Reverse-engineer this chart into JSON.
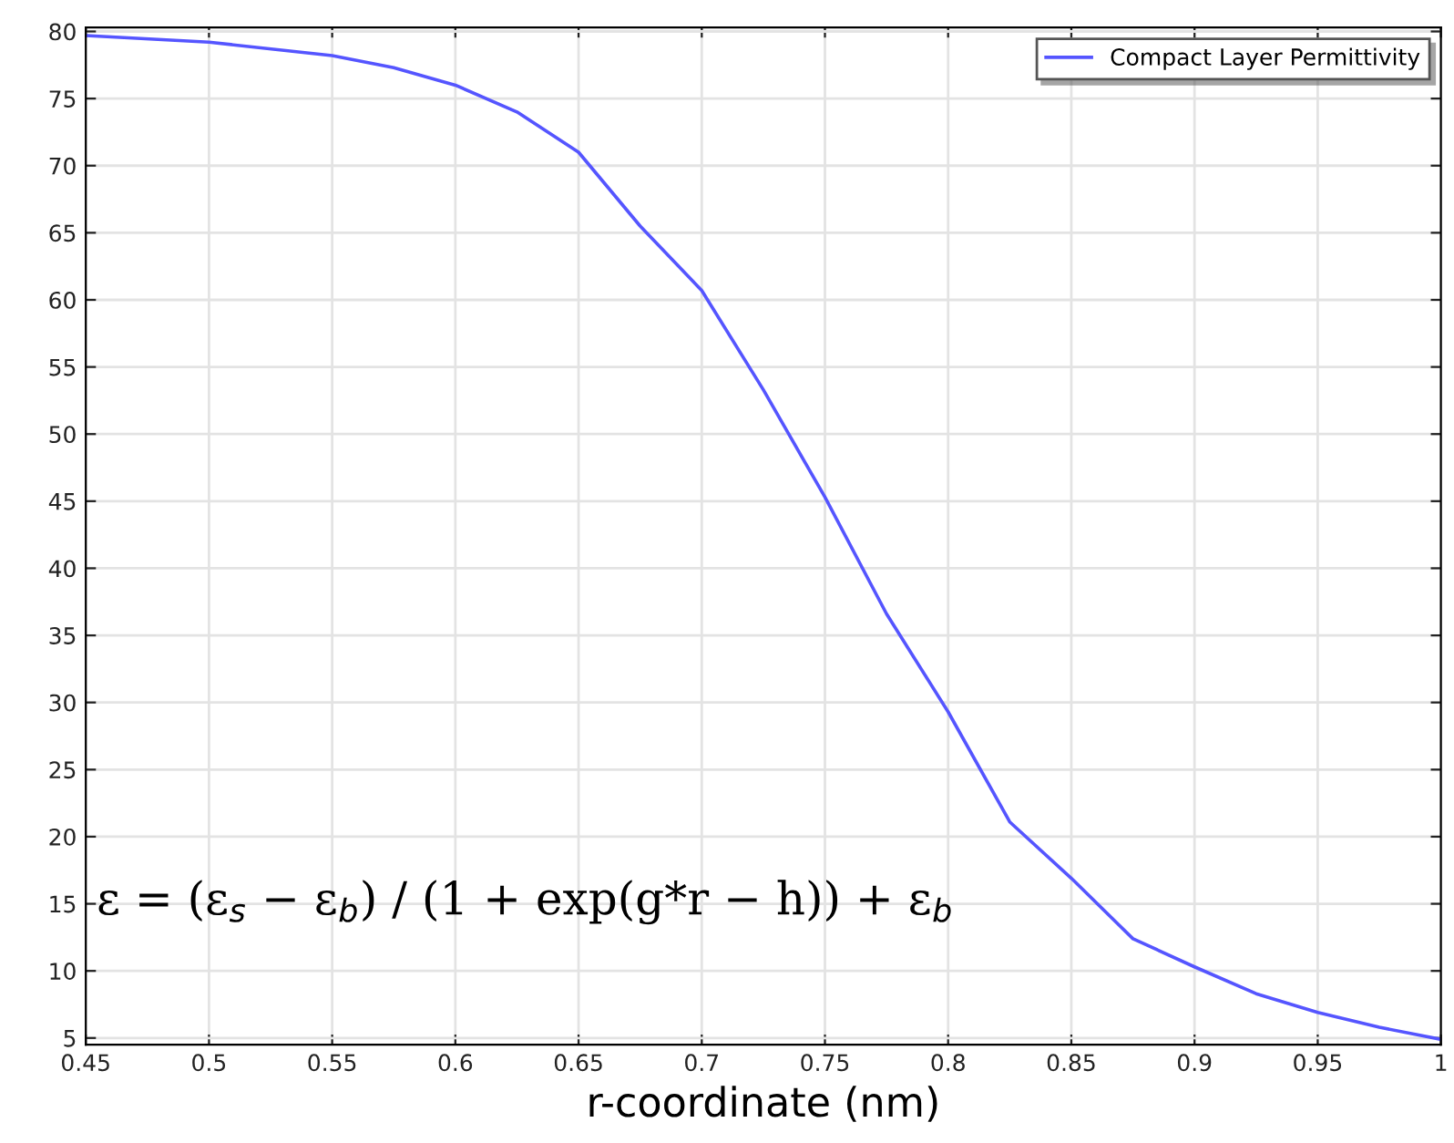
{
  "chart_data": {
    "type": "line",
    "xlabel": "r-coordinate (nm)",
    "x": [
      0.45,
      0.5,
      0.55,
      0.575,
      0.6,
      0.625,
      0.65,
      0.675,
      0.7,
      0.725,
      0.75,
      0.775,
      0.8,
      0.825,
      0.85,
      0.875,
      0.9,
      0.925,
      0.95,
      0.975,
      1.0
    ],
    "series": [
      {
        "name": "Compact Layer Permittivity",
        "color": "#5555ff",
        "values": [
          79.7,
          79.2,
          78.2,
          77.3,
          76.0,
          74.0,
          71.0,
          65.5,
          60.7,
          53.3,
          45.3,
          36.6,
          29.3,
          21.1,
          16.9,
          12.4,
          10.3,
          8.3,
          6.9,
          5.8,
          4.9
        ]
      }
    ],
    "xlim": [
      0.45,
      1.0
    ],
    "ylim": [
      4.5,
      80.3
    ],
    "xticks": [
      0.45,
      0.5,
      0.55,
      0.6,
      0.65,
      0.7,
      0.75,
      0.8,
      0.85,
      0.9,
      0.95,
      1
    ],
    "yticks": [
      5,
      10,
      15,
      20,
      25,
      30,
      35,
      40,
      45,
      50,
      55,
      60,
      65,
      70,
      75,
      80
    ],
    "grid": true,
    "legend": "top right",
    "line_style": "solid",
    "marker": "none",
    "annotations": [
      "ε = (ε$_{s}$ − ε$_{b}$) / (1 + exp(g*r − h)) + ε$_{b}$"
    ]
  }
}
